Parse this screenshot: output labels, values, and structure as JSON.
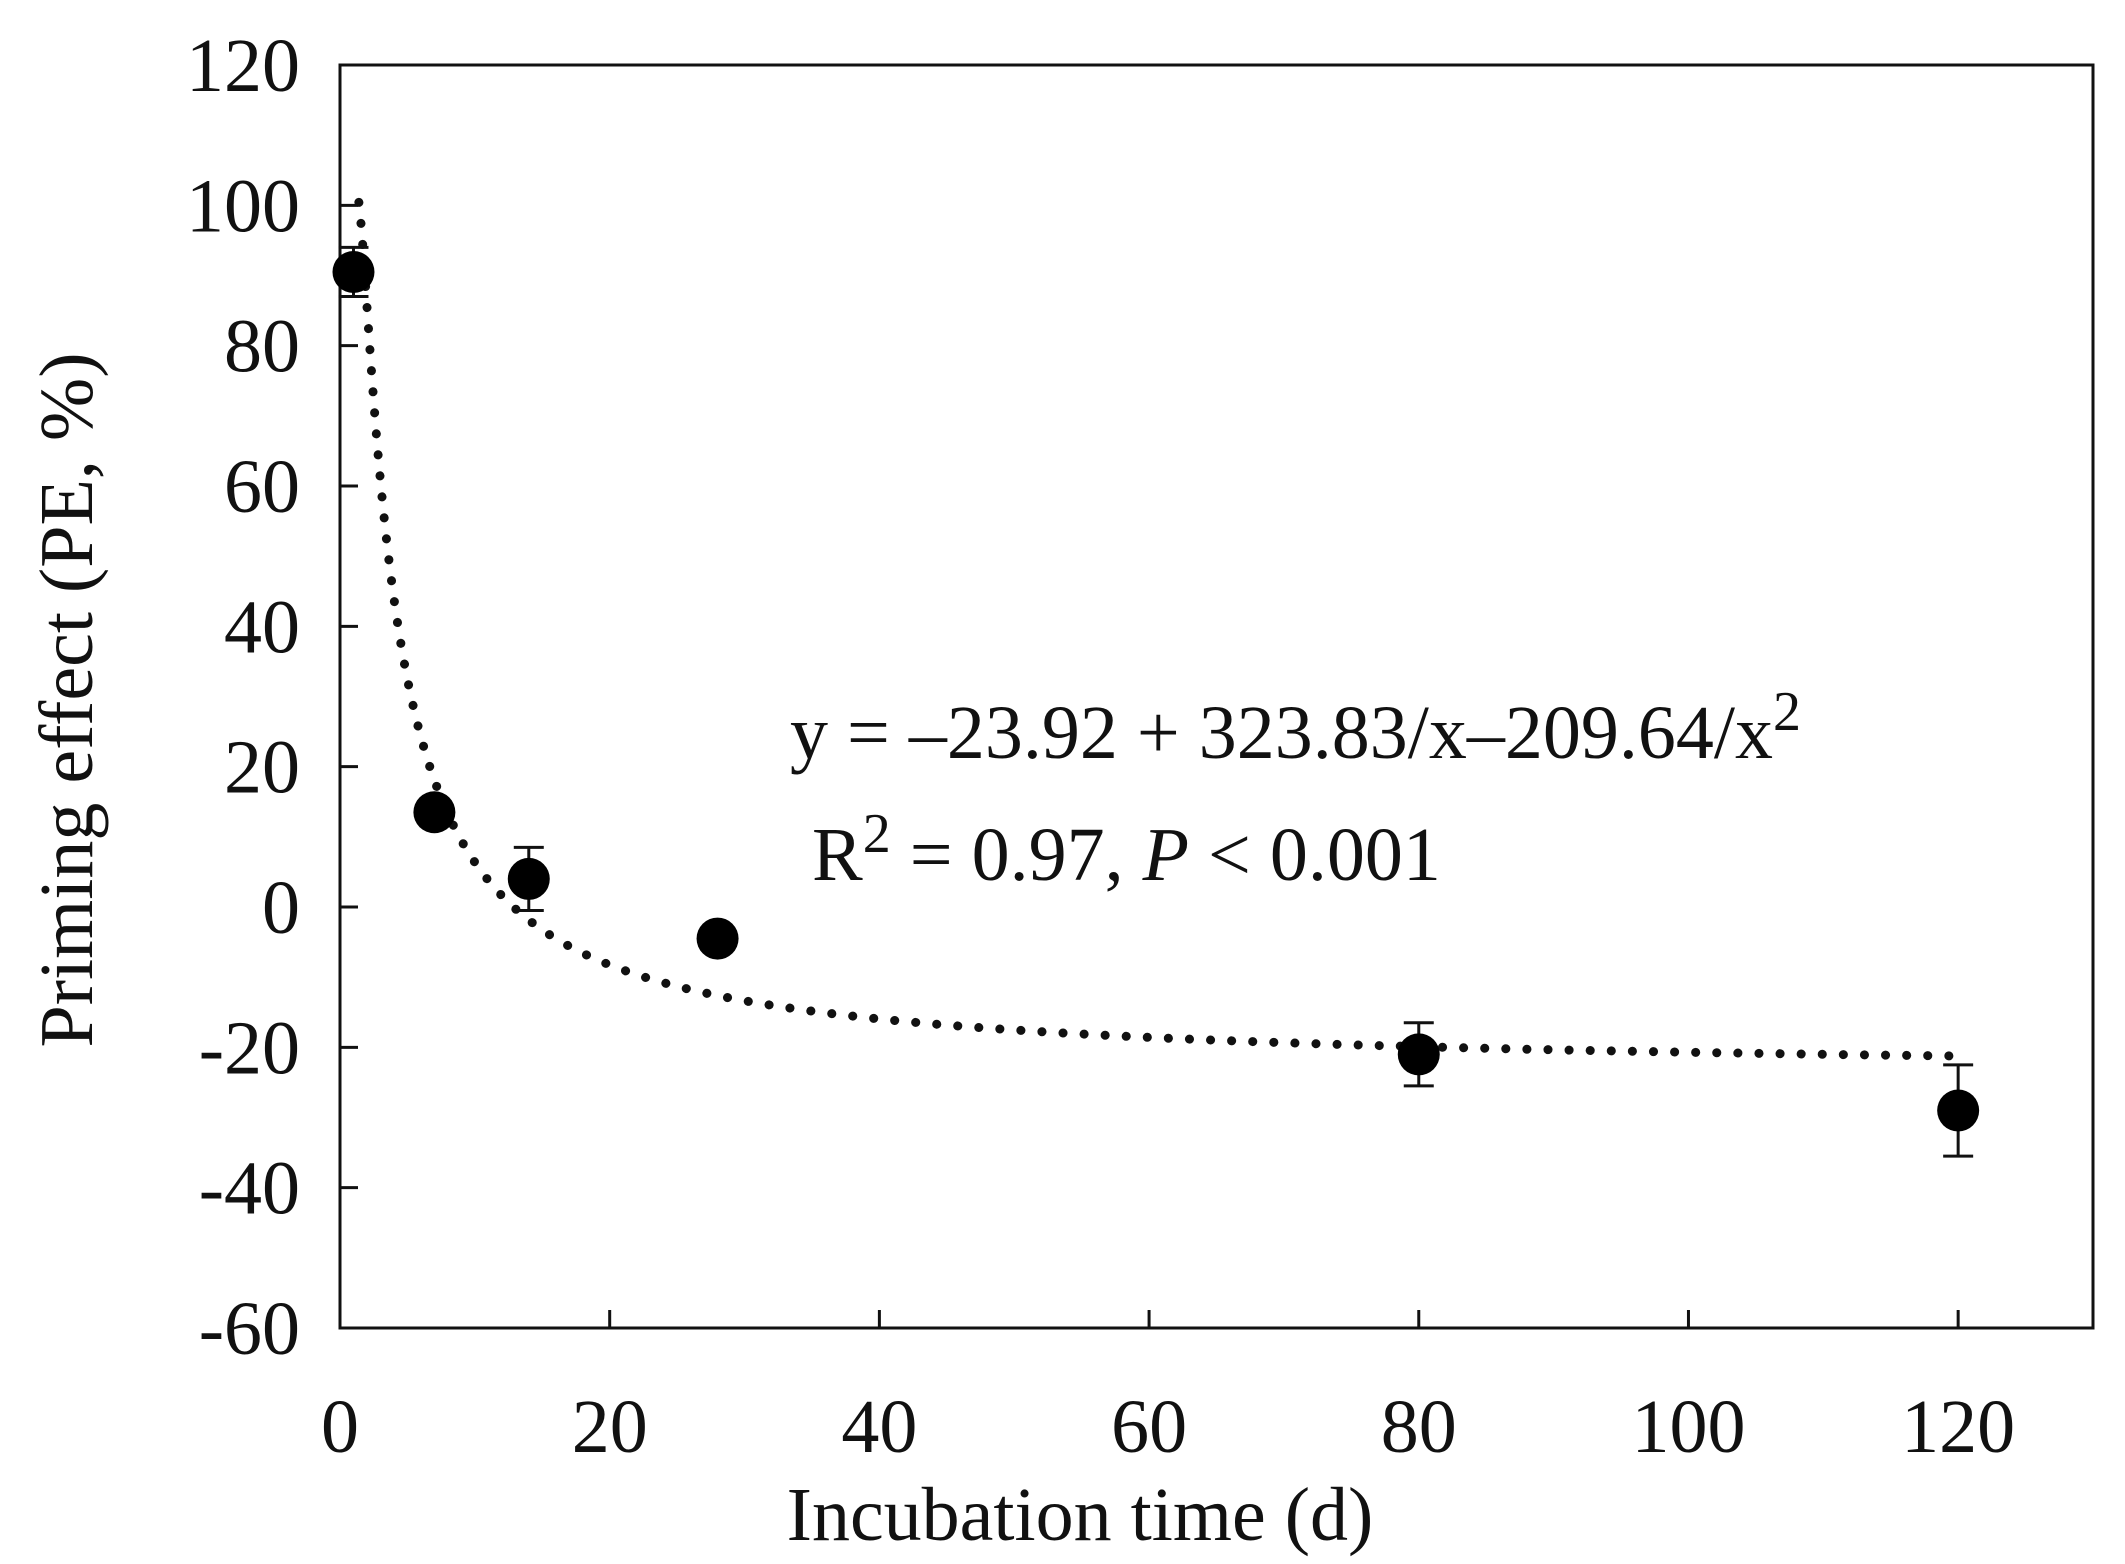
{
  "chart_data": {
    "type": "scatter",
    "title": "",
    "xlabel": "Incubation time (d)",
    "ylabel": "Priming effect (PE, %)",
    "xlim": [
      0,
      130
    ],
    "ylim": [
      -60,
      120
    ],
    "xticks": [
      0,
      20,
      40,
      60,
      80,
      100,
      120
    ],
    "yticks": [
      -60,
      -40,
      -20,
      0,
      20,
      40,
      60,
      80,
      100,
      120
    ],
    "xtick_labels": [
      "0",
      "20",
      "40",
      "60",
      "80",
      "100",
      "120"
    ],
    "ytick_labels": [
      "-60",
      "-40",
      "-20",
      "0",
      "20",
      "40",
      "60",
      "80",
      "100",
      "120"
    ],
    "series": [
      {
        "name": "Priming effect",
        "marker": "filled-circle",
        "x": [
          1,
          7,
          14,
          28,
          80,
          120
        ],
        "y": [
          90.5,
          13.5,
          4,
          -4.5,
          -21,
          -29
        ],
        "error": [
          3.5,
          0,
          4.5,
          0,
          4.5,
          6.5
        ]
      }
    ],
    "fit": {
      "style": "dotted",
      "equation": "y = −23.92 + 323.83/x−209.64/x²",
      "a": -23.92,
      "b": 323.83,
      "c": -209.64,
      "x_range": [
        1.4,
        120
      ]
    },
    "annotations": {
      "equation_main": "y = –23.92 + 323.83/x–209.64/x",
      "equation_sup": "2",
      "r2_prefix": "R",
      "r2_sup": "2",
      "r2_value": " = 0.97, ",
      "p_symbol": "P",
      "p_value": " < 0.001"
    }
  }
}
